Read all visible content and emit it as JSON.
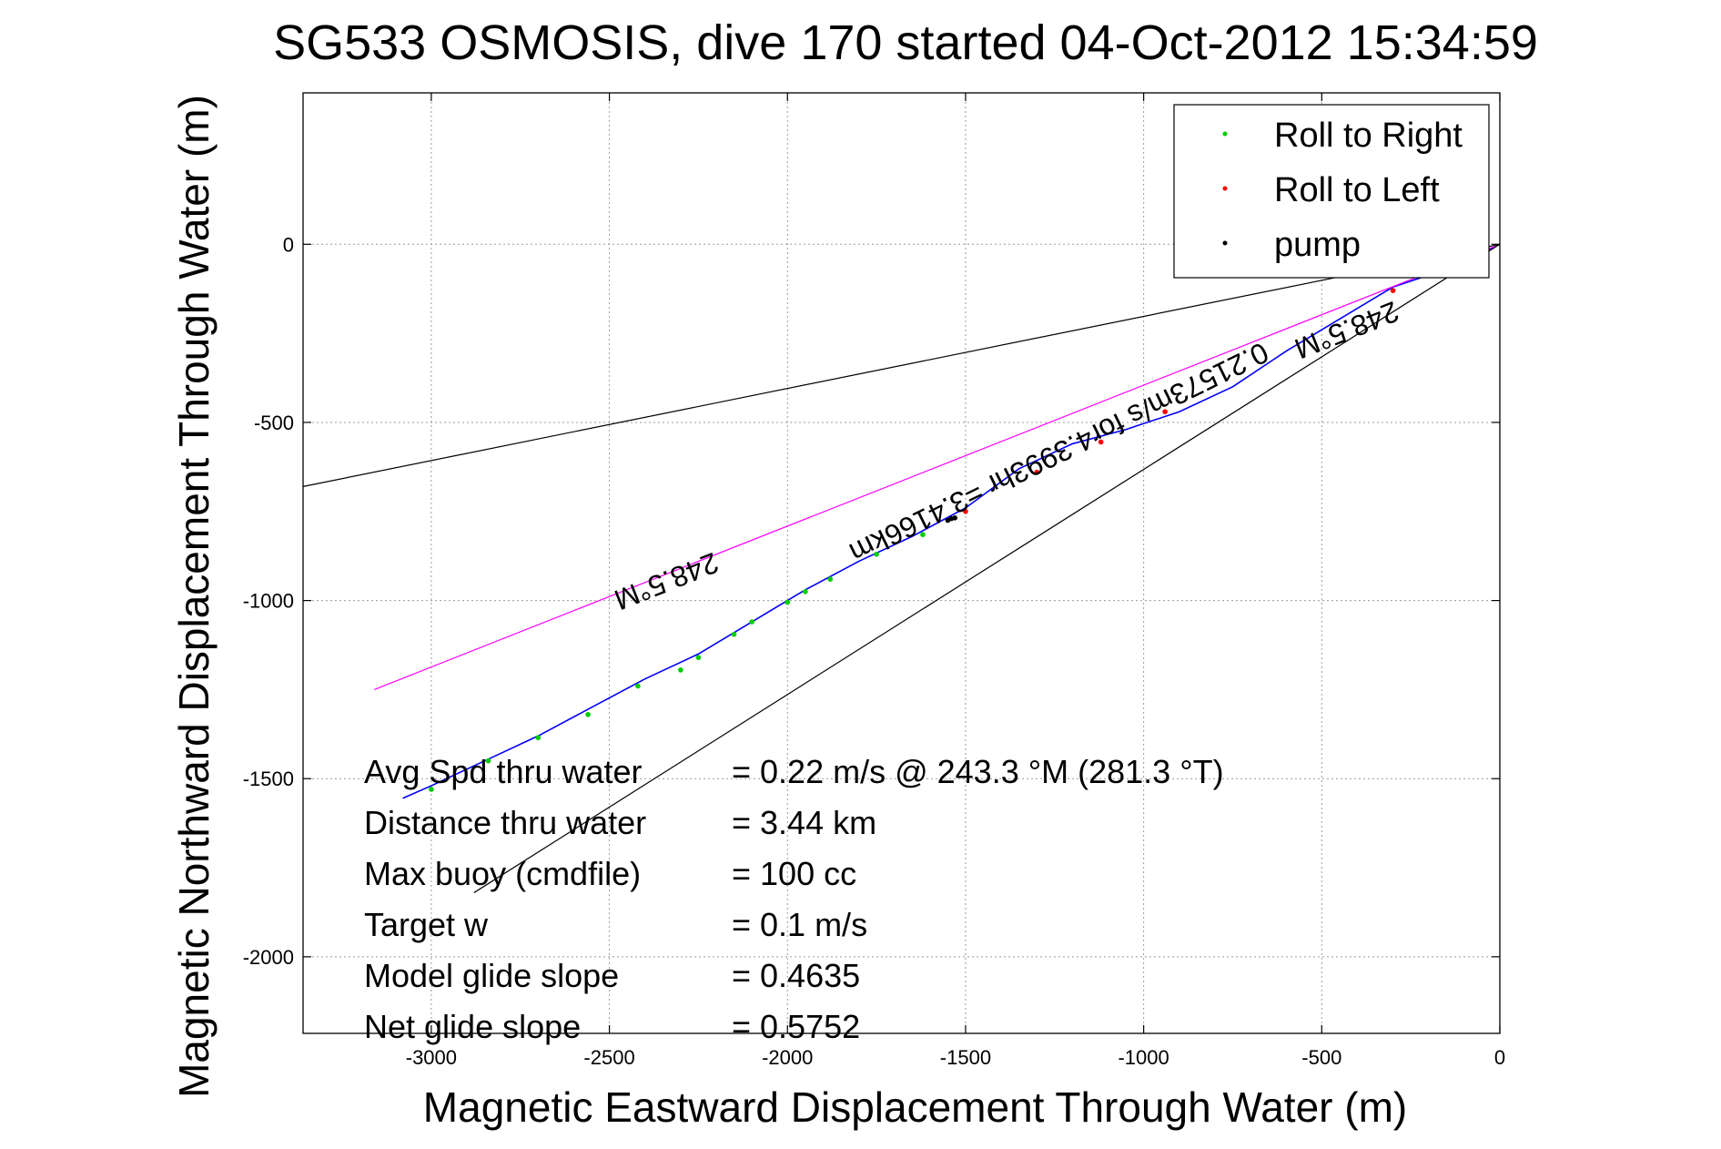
{
  "chart_data": {
    "type": "line",
    "title": "SG533 OSMOSIS, dive 170 started 04-Oct-2012 15:34:59",
    "xlabel": "Magnetic Eastward Displacement Through Water (m)",
    "ylabel": "Magnetic Northward Displacement Through Water (m)",
    "xlim": [
      -3360,
      0
    ],
    "ylim": [
      -2215,
      425
    ],
    "xticks": [
      -3000,
      -2500,
      -2000,
      -1500,
      -1000,
      -500,
      0
    ],
    "yticks": [
      0,
      -500,
      -1000,
      -1500,
      -2000
    ],
    "grid": true,
    "legend": {
      "position": "top-right",
      "entries": [
        {
          "label": "Roll to Right",
          "color": "#00cc00"
        },
        {
          "label": "Roll to Left",
          "color": "#ff0000"
        },
        {
          "label": "pump",
          "color": "#000000"
        }
      ]
    },
    "series": [
      {
        "label": "track",
        "color": "#0000ff",
        "x": [
          0,
          -150,
          -300,
          -450,
          -600,
          -750,
          -900,
          -1050,
          -1200,
          -1350,
          -1500,
          -1650,
          -1800,
          -1950,
          -2100,
          -2250,
          -2400,
          -2550,
          -2700,
          -2850,
          -3000,
          -3080
        ],
        "y": [
          0,
          -70,
          -120,
          -210,
          -300,
          -400,
          -470,
          -520,
          -560,
          -630,
          -740,
          -820,
          -890,
          -970,
          -1060,
          -1150,
          -1220,
          -1300,
          -1380,
          -1450,
          -1520,
          -1555
        ]
      },
      {
        "label": "heading line",
        "color": "#ff00ff",
        "x": [
          0,
          -3160
        ],
        "y": [
          0,
          -1250
        ]
      },
      {
        "label": "envelope upper",
        "color": "#000000",
        "x": [
          0,
          -3360
        ],
        "y": [
          0,
          -680
        ]
      },
      {
        "label": "envelope lower",
        "color": "#000000",
        "x": [
          0,
          -2880
        ],
        "y": [
          0,
          -1820
        ]
      }
    ],
    "markers": {
      "roll_right": {
        "color": "#00cc00",
        "x": [
          -3000,
          -2840,
          -2700,
          -2560,
          -2420,
          -2300,
          -2250,
          -2150,
          -2100,
          -2000,
          -1950,
          -1880,
          -1750,
          -1620
        ],
        "y": [
          -1530,
          -1450,
          -1385,
          -1320,
          -1240,
          -1195,
          -1160,
          -1095,
          -1060,
          -1005,
          -975,
          -940,
          -870,
          -815
        ]
      },
      "roll_left": {
        "color": "#ff0000",
        "x": [
          -1500,
          -1300,
          -1120,
          -940,
          -300
        ],
        "y": [
          -750,
          -640,
          -555,
          -470,
          -130
        ]
      },
      "pump": {
        "color": "#000000",
        "x": [
          -1550,
          -1540,
          -1530
        ],
        "y": [
          -775,
          -770,
          -768
        ]
      }
    },
    "annotations": [
      {
        "text": "248.5°M",
        "x": -2350,
        "y": -920,
        "rotate": 158.4
      },
      {
        "text": "0.21573m/s for4.3993hr =3.4166km",
        "x": -1250,
        "y": -560,
        "rotate": 153.8
      },
      {
        "text": "248.5°M",
        "x": -440,
        "y": -215,
        "rotate": 158.4
      }
    ],
    "info": [
      {
        "label": "Avg Spd thru water",
        "value": "=  0.22 m/s @ 243.3 °M (281.3 °T)"
      },
      {
        "label": "Distance thru water",
        "value": "=  3.44 km"
      },
      {
        "label": "Max buoy (cmdfile)",
        "value": "= 100 cc"
      },
      {
        "label": "Target w",
        "value": "= 0.1 m/s"
      },
      {
        "label": "Model glide slope",
        "value": "= 0.4635"
      },
      {
        "label": "Net glide slope",
        "value": "= 0.5752"
      }
    ]
  }
}
